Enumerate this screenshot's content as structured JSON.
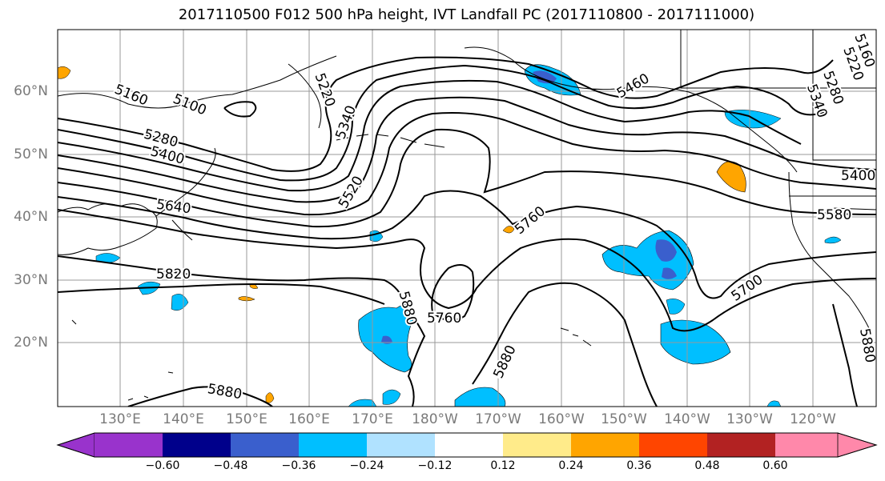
{
  "title": "2017110500 F012 500 hPa height, IVT Landfall PC (2017110800 - 2017111000)",
  "latitude_labels": [
    "60°N",
    "50°N",
    "40°N",
    "30°N",
    "20°N"
  ],
  "longitude_labels": [
    "130°E",
    "140°E",
    "150°E",
    "160°E",
    "170°E",
    "180°W",
    "170°W",
    "160°W",
    "150°W",
    "140°W",
    "130°W",
    "120°W"
  ],
  "contour_labels": [
    "5160",
    "5100",
    "5220",
    "5340",
    "5280",
    "5400",
    "5520",
    "5640",
    "5820",
    "5880",
    "5760",
    "5760",
    "5880",
    "5880",
    "5460",
    "5220",
    "5160",
    "5280",
    "5340",
    "5400",
    "5580",
    "5700",
    "5880"
  ],
  "colorbar": {
    "ticks": [
      "−0.60",
      "−0.48",
      "−0.36",
      "−0.24",
      "−0.12",
      "0.12",
      "0.24",
      "0.36",
      "0.48",
      "0.60"
    ],
    "colors": [
      "#9933cc",
      "#00008b",
      "#3a5fcd",
      "#00bfff",
      "#b0e2ff",
      "#ffffff",
      "#ffeb8a",
      "#ffa500",
      "#ff4500",
      "#b22222",
      "#ff88aa"
    ]
  }
}
